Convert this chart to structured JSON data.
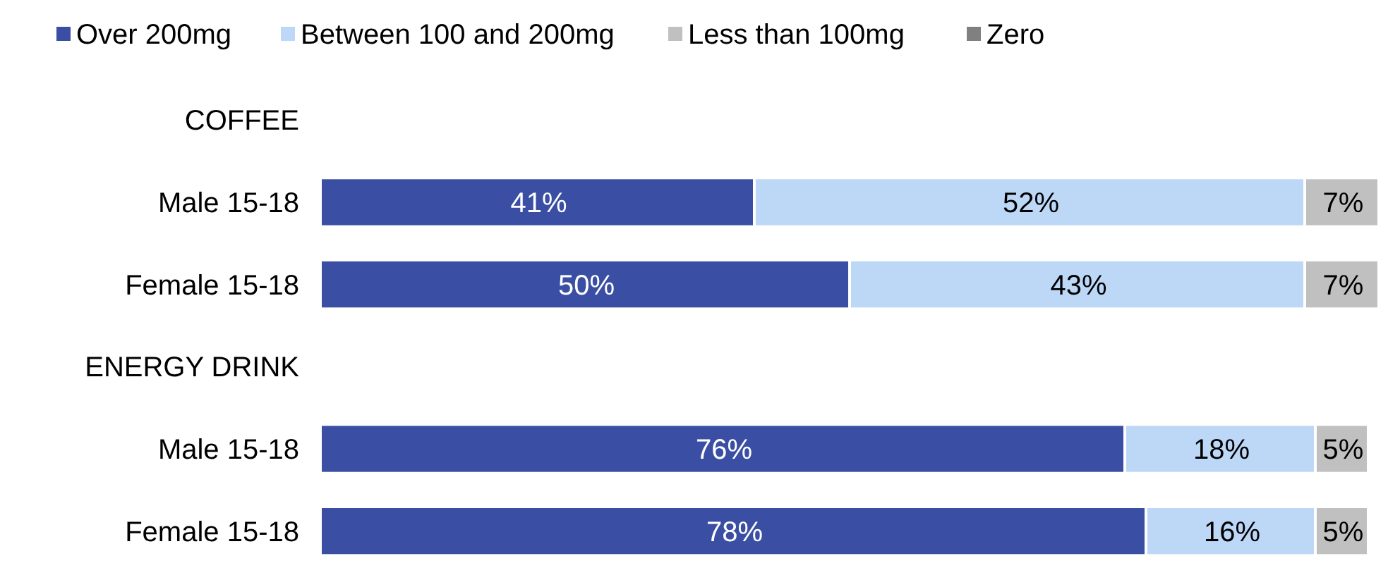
{
  "chart_data": {
    "type": "bar",
    "orientation": "horizontal",
    "stacked": true,
    "categories": [
      "COFFEE",
      "Male 15-18",
      "Female 15-18",
      "ENERGY DRINK",
      "Male 15-18",
      "Female 15-18"
    ],
    "series": [
      {
        "name": "Over 200mg",
        "color": "#3a4fa3",
        "values": [
          null,
          41,
          50,
          null,
          76,
          78
        ],
        "value_labels": [
          null,
          "41%",
          "50%",
          null,
          "76%",
          "78%"
        ]
      },
      {
        "name": "Between 100 and 200mg",
        "color": "#bdd7f7",
        "values": [
          null,
          52,
          43,
          null,
          18,
          16
        ],
        "value_labels": [
          null,
          "52%",
          "43%",
          null,
          "18%",
          "16%"
        ]
      },
      {
        "name": "Less than 100mg",
        "color": "#c0c0c0",
        "values": [
          null,
          7,
          7,
          null,
          5,
          5
        ],
        "value_labels": [
          null,
          "7%",
          "7%",
          null,
          "5%",
          "5%"
        ]
      },
      {
        "name": "Zero",
        "color": "#808080",
        "values": [
          null,
          null,
          null,
          null,
          null,
          null
        ]
      }
    ],
    "xlim": [
      0,
      100
    ],
    "tick_labels": "y",
    "legend": "top"
  }
}
